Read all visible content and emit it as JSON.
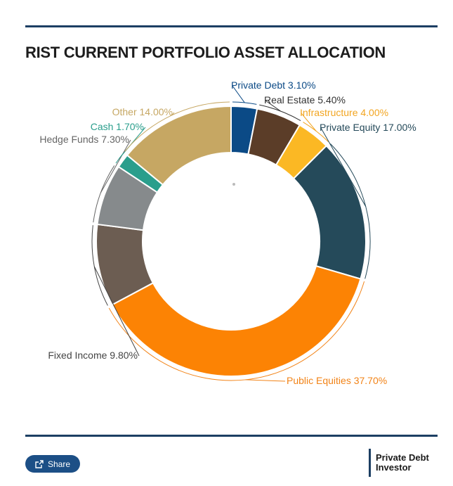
{
  "title": "RIST CURRENT PORTFOLIO ASSET ALLOCATION",
  "share_label": "Share",
  "brand": {
    "line1": "Private Debt",
    "line2": "Investor"
  },
  "chart_data": {
    "type": "pie",
    "style": "donut",
    "title": "RIST CURRENT PORTFOLIO ASSET ALLOCATION",
    "legend": "none",
    "slices": [
      {
        "label": "Private Debt",
        "value": 3.1,
        "display": "Private Debt 3.10%",
        "color": "#0b4a86"
      },
      {
        "label": "Real Estate",
        "value": 5.4,
        "display": "Real Estate 5.40%",
        "color": "#5b3d28"
      },
      {
        "label": "Infrastructure",
        "value": 4.0,
        "display": "Infrastructure 4.00%",
        "color": "#fbb824"
      },
      {
        "label": "Private Equity",
        "value": 17.0,
        "display": "Private Equity 17.00%",
        "color": "#254a5a"
      },
      {
        "label": "Public Equities",
        "value": 37.7,
        "display": "Public Equities 37.70%",
        "color": "#fc8304"
      },
      {
        "label": "Fixed Income",
        "value": 9.8,
        "display": "Fixed Income 9.80%",
        "color": "#6c5d52"
      },
      {
        "label": "Hedge Funds",
        "value": 7.3,
        "display": "Hedge Funds 7.30%",
        "color": "#868a8c"
      },
      {
        "label": "Cash",
        "value": 1.7,
        "display": "Cash 1.70%",
        "color": "#2a9e8c"
      },
      {
        "label": "Other",
        "value": 14.0,
        "display": "Other 14.00%",
        "color": "#c6a763"
      }
    ]
  }
}
